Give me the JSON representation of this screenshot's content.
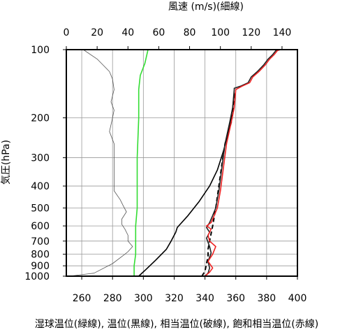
{
  "chart_data": {
    "type": "line",
    "top_axis": {
      "label": "風速 (m/s)(細線)",
      "ticks": [
        0,
        20,
        40,
        60,
        80,
        100,
        120,
        140
      ],
      "range": [
        0,
        150
      ]
    },
    "bottom_axis": {
      "label": "湿球温位(緑線), 温位(黒線), 相当温位(破線), 飽和相当温位(赤線)",
      "ticks": [
        260,
        280,
        300,
        320,
        340,
        360,
        380,
        400
      ],
      "range": [
        250,
        400
      ]
    },
    "y_axis": {
      "label": "気圧(hPa)",
      "ticks": [
        100,
        200,
        300,
        400,
        500,
        600,
        700,
        800,
        900,
        1000
      ],
      "scale": "log",
      "range": [
        1000,
        100
      ]
    },
    "grid": true,
    "series": [
      {
        "axis": "top",
        "color": "#555555",
        "style": "thin",
        "points": [
          [
            2,
            1000
          ],
          [
            18,
            970
          ],
          [
            30,
            880
          ],
          [
            38,
            800
          ],
          [
            40,
            780
          ],
          [
            43,
            740
          ],
          [
            40,
            700
          ],
          [
            40,
            660
          ],
          [
            38,
            620
          ],
          [
            36,
            590
          ],
          [
            36,
            560
          ],
          [
            39,
            520
          ],
          [
            37,
            490
          ],
          [
            35,
            460
          ],
          [
            31,
            420
          ],
          [
            31,
            380
          ],
          [
            31,
            340
          ],
          [
            31,
            300
          ],
          [
            31,
            260
          ],
          [
            28,
            230
          ],
          [
            30,
            200
          ],
          [
            31,
            185
          ],
          [
            29,
            170
          ],
          [
            31,
            150
          ],
          [
            30,
            135
          ],
          [
            28,
            125
          ],
          [
            20,
            110
          ],
          [
            11,
            100
          ]
        ]
      },
      {
        "axis": "bottom",
        "color": "#33dd33",
        "style": "solid",
        "points": [
          [
            294,
            1000
          ],
          [
            294,
            900
          ],
          [
            295,
            800
          ],
          [
            295,
            700
          ],
          [
            295,
            600
          ],
          [
            296,
            500
          ],
          [
            296,
            400
          ],
          [
            296,
            300
          ],
          [
            297,
            200
          ],
          [
            297,
            150
          ],
          [
            298,
            130
          ],
          [
            301,
            115
          ],
          [
            303,
            100
          ]
        ]
      },
      {
        "axis": "bottom",
        "color": "#000000",
        "style": "solid",
        "points": [
          [
            297,
            1000
          ],
          [
            302,
            930
          ],
          [
            308,
            850
          ],
          [
            315,
            760
          ],
          [
            318,
            700
          ],
          [
            321,
            640
          ],
          [
            322,
            610
          ],
          [
            329,
            540
          ],
          [
            336,
            470
          ],
          [
            343,
            400
          ],
          [
            348,
            340
          ],
          [
            352,
            280
          ],
          [
            356,
            220
          ],
          [
            358,
            180
          ],
          [
            359,
            155
          ]
        ]
      },
      {
        "axis": "bottom",
        "color": "#000000",
        "style": "dashed",
        "points": [
          [
            338,
            1000
          ],
          [
            340,
            950
          ],
          [
            341,
            880
          ],
          [
            342,
            820
          ],
          [
            342,
            760
          ],
          [
            343,
            700
          ],
          [
            345,
            600
          ],
          [
            347,
            500
          ],
          [
            349,
            400
          ],
          [
            351,
            320
          ],
          [
            353,
            260
          ],
          [
            357,
            210
          ],
          [
            359,
            175
          ],
          [
            359,
            155
          ]
        ]
      },
      {
        "axis": "bottom",
        "color": "#222222",
        "style": "solid",
        "points": [
          [
            340,
            1000
          ],
          [
            342,
            970
          ],
          [
            343,
            920
          ],
          [
            342,
            860
          ],
          [
            344,
            790
          ],
          [
            343,
            740
          ],
          [
            341,
            680
          ],
          [
            343,
            640
          ],
          [
            341,
            610
          ],
          [
            343,
            580
          ],
          [
            345,
            540
          ],
          [
            347,
            500
          ],
          [
            349,
            420
          ],
          [
            351,
            330
          ],
          [
            353,
            260
          ],
          [
            356,
            210
          ],
          [
            358,
            180
          ],
          [
            359,
            150
          ],
          [
            359,
            148
          ],
          [
            363,
            145
          ],
          [
            368,
            140
          ],
          [
            370,
            132
          ],
          [
            374,
            125
          ],
          [
            378,
            117
          ],
          [
            381,
            110
          ],
          [
            384,
            105
          ],
          [
            386,
            101
          ],
          [
            388,
            100
          ],
          [
            391,
            100
          ]
        ]
      },
      {
        "axis": "bottom",
        "color": "#ee2222",
        "style": "solid",
        "points": [
          [
            340,
            1000
          ],
          [
            343,
            960
          ],
          [
            345,
            920
          ],
          [
            342,
            860
          ],
          [
            345,
            800
          ],
          [
            347,
            740
          ],
          [
            343,
            700
          ],
          [
            342,
            660
          ],
          [
            344,
            620
          ],
          [
            341,
            600
          ],
          [
            344,
            580
          ],
          [
            346,
            540
          ],
          [
            348,
            500
          ],
          [
            350,
            420
          ],
          [
            352,
            330
          ],
          [
            354,
            260
          ],
          [
            357,
            210
          ],
          [
            359,
            180
          ],
          [
            360,
            150
          ],
          [
            364,
            145
          ],
          [
            369,
            140
          ],
          [
            371,
            132
          ],
          [
            375,
            125
          ],
          [
            379,
            117
          ],
          [
            382,
            110
          ],
          [
            385,
            105
          ],
          [
            387,
            101
          ],
          [
            389,
            100
          ],
          [
            391,
            100
          ]
        ]
      }
    ]
  }
}
